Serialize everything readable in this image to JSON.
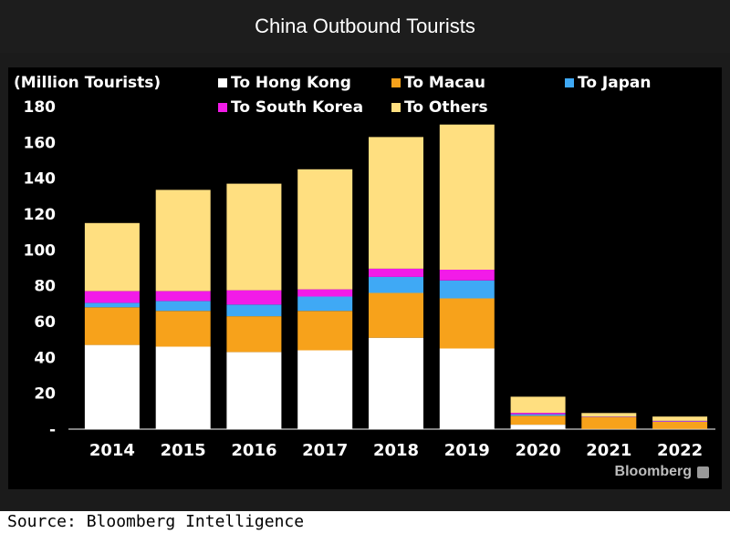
{
  "page": {
    "title": "China Outbound Tourists",
    "source": "Source: Bloomberg Intelligence",
    "brand": "Bloomberg"
  },
  "colors": {
    "hong_kong": "#ffffff",
    "macau": "#f7a21b",
    "japan": "#3fa9f5",
    "south_korea": "#f21be8",
    "others": "#ffdf80"
  },
  "chart_data": {
    "type": "bar",
    "stacked": true,
    "title": "China Outbound Tourists",
    "ylabel": "(Million Tourists)",
    "ylim": [
      0,
      180
    ],
    "yticks": [
      "-",
      "20",
      "40",
      "60",
      "80",
      "100",
      "120",
      "140",
      "160",
      "180"
    ],
    "categories": [
      "2014",
      "2015",
      "2016",
      "2017",
      "2018",
      "2019",
      "2020",
      "2021",
      "2022"
    ],
    "series": [
      {
        "name": "To Hong Kong",
        "key": "hong_kong",
        "values": [
          47,
          46,
          43,
          44,
          51,
          45,
          2.5,
          0.1,
          0.1
        ]
      },
      {
        "name": "To Macau",
        "key": "macau",
        "values": [
          21,
          20,
          20,
          22,
          25,
          28,
          5,
          6.5,
          4
        ]
      },
      {
        "name": "To Japan",
        "key": "japan",
        "values": [
          2.5,
          5.5,
          6.5,
          8,
          9,
          10,
          0.8,
          0.1,
          0.2
        ]
      },
      {
        "name": "To South Korea",
        "key": "south_korea",
        "values": [
          6.5,
          5.5,
          8,
          4,
          4.5,
          6,
          0.8,
          0.2,
          0.3
        ]
      },
      {
        "name": "To Others",
        "key": "others",
        "values": [
          38,
          56.5,
          59.5,
          67,
          73.5,
          81,
          9,
          2.1,
          2.4
        ]
      }
    ],
    "legend_position": "top"
  }
}
